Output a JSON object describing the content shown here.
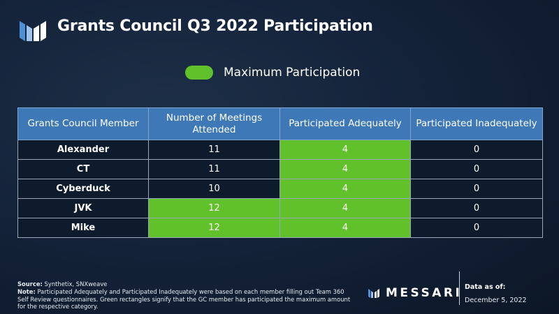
{
  "header": {
    "title": "Grants Council Q3 2022 Participation",
    "logo_icon": "messari-m-logo-icon"
  },
  "legend": {
    "label": "Maximum Participation",
    "color": "#61c12b"
  },
  "chart_data": {
    "type": "table",
    "columns": [
      "Grants Council Member",
      "Number of Meetings Attended",
      "Participated Adequately",
      "Participated Inadequately"
    ],
    "rows": [
      {
        "member": "Alexander",
        "meetings": 11,
        "adequately": 4,
        "inadequately": 0,
        "max_meetings": false,
        "max_adequately": true
      },
      {
        "member": "CT",
        "meetings": 11,
        "adequately": 4,
        "inadequately": 0,
        "max_meetings": false,
        "max_adequately": true
      },
      {
        "member": "Cyberduck",
        "meetings": 10,
        "adequately": 4,
        "inadequately": 0,
        "max_meetings": false,
        "max_adequately": true
      },
      {
        "member": "JVK",
        "meetings": 12,
        "adequately": 4,
        "inadequately": 0,
        "max_meetings": true,
        "max_adequately": true
      },
      {
        "member": "Mike",
        "meetings": 12,
        "adequately": 4,
        "inadequately": 0,
        "max_meetings": true,
        "max_adequately": true
      }
    ],
    "header_color": "#3e78b6",
    "highlight_color": "#61c12b"
  },
  "footer": {
    "source_label": "Source:",
    "source_text": "Synthetix, SNXweave",
    "note_label": "Note:",
    "note_text": "Participated Adequately and Participated Inadequately were based on each member filling out Team 360 Self Review questionnaires. Green rectangles signify that the GC member has participated the maximum amount for the respective category.",
    "brand": "MESSARI",
    "data_as_of_label": "Data as of:",
    "data_as_of_value": "December 5, 2022"
  }
}
